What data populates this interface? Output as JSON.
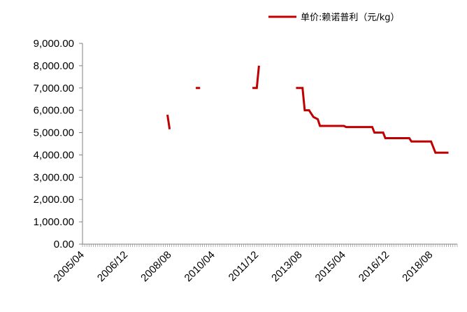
{
  "chart_data": {
    "type": "line",
    "title": "",
    "xlabel": "",
    "ylabel": "",
    "ylim": [
      0,
      9000
    ],
    "y_ticks": [
      "0.00",
      "1,000.00",
      "2,000.00",
      "3,000.00",
      "4,000.00",
      "5,000.00",
      "6,000.00",
      "7,000.00",
      "8,000.00",
      "9,000.00"
    ],
    "y_tick_values": [
      0,
      1000,
      2000,
      3000,
      4000,
      5000,
      6000,
      7000,
      8000,
      9000
    ],
    "x_range": [
      "2005-03",
      "2019-07"
    ],
    "x_ticks": [
      "2005/04",
      "2006/12",
      "2008/08",
      "2010/04",
      "2011/12",
      "2013/08",
      "2015/04",
      "2016/12",
      "2018/08"
    ],
    "x_tick_dates": [
      "2005-04",
      "2006-12",
      "2008-08",
      "2010-04",
      "2011-12",
      "2013-08",
      "2015-04",
      "2016-12",
      "2018-08"
    ],
    "grid": false,
    "legend_position": "top-right",
    "series": [
      {
        "name": "单价:赖诺普利（元/kg）",
        "color": "#c00000",
        "segments": [
          [
            {
              "x": "2008-06",
              "y": 5800
            },
            {
              "x": "2008-07",
              "y": 5150
            }
          ],
          [
            {
              "x": "2009-07",
              "y": 7000
            },
            {
              "x": "2009-09",
              "y": 7000
            }
          ],
          [
            {
              "x": "2011-09",
              "y": 7000
            },
            {
              "x": "2011-11",
              "y": 7000
            },
            {
              "x": "2011-12",
              "y": 8000
            }
          ],
          [
            {
              "x": "2013-05",
              "y": 7000
            },
            {
              "x": "2013-08",
              "y": 7000
            },
            {
              "x": "2013-09",
              "y": 6000
            },
            {
              "x": "2013-11",
              "y": 6000
            },
            {
              "x": "2014-01",
              "y": 5700
            },
            {
              "x": "2014-03",
              "y": 5600
            },
            {
              "x": "2014-04",
              "y": 5300
            },
            {
              "x": "2015-03",
              "y": 5300
            },
            {
              "x": "2015-04",
              "y": 5250
            },
            {
              "x": "2016-04",
              "y": 5250
            },
            {
              "x": "2016-05",
              "y": 5000
            },
            {
              "x": "2016-09",
              "y": 5000
            },
            {
              "x": "2016-10",
              "y": 4750
            },
            {
              "x": "2017-09",
              "y": 4750
            },
            {
              "x": "2017-10",
              "y": 4600
            },
            {
              "x": "2018-07",
              "y": 4600
            },
            {
              "x": "2018-09",
              "y": 4100
            },
            {
              "x": "2019-03",
              "y": 4100
            }
          ]
        ]
      }
    ]
  }
}
